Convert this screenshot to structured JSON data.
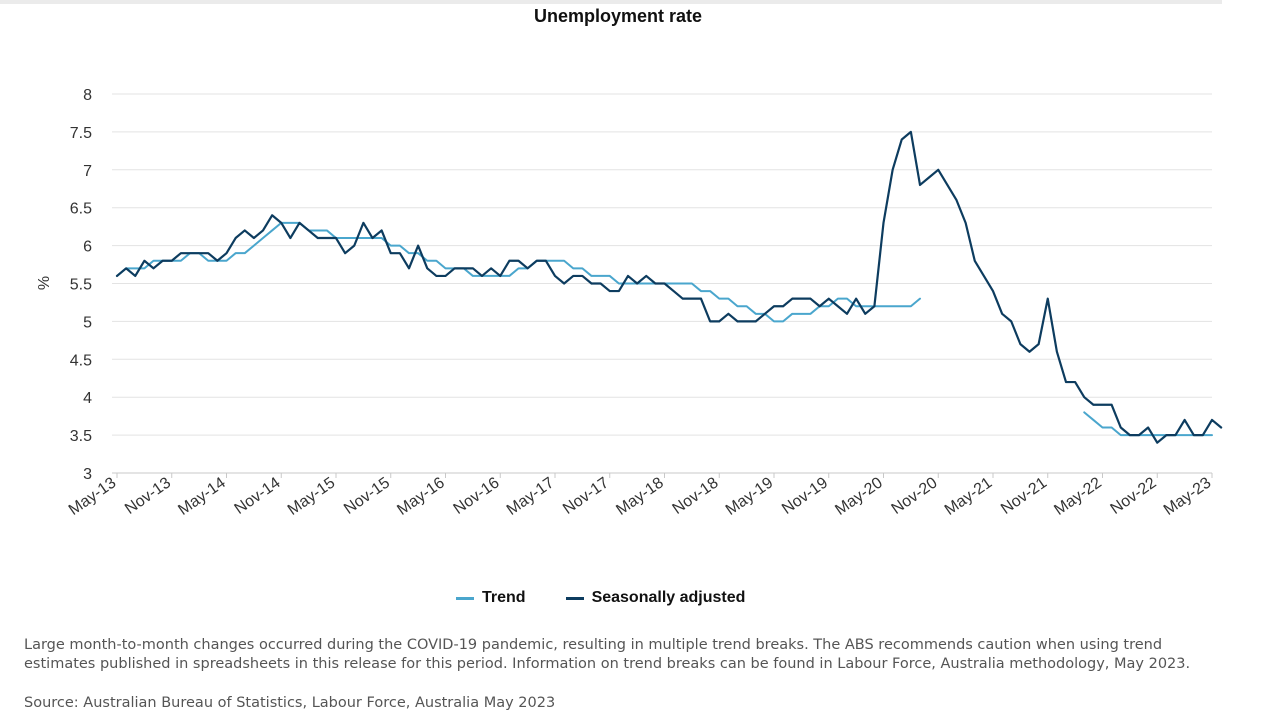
{
  "chart_data": {
    "type": "line",
    "title": "Unemployment rate",
    "ylabel": "%",
    "ylim": [
      3,
      8
    ],
    "yticks": [
      "8",
      "7.5",
      "7",
      "6.5",
      "6",
      "5.5",
      "5",
      "4.5",
      "4",
      "3.5",
      "3"
    ],
    "grid": true,
    "legend_position": "bottom",
    "x_start": "2013-05",
    "x_end": "2023-05",
    "x_labels": [
      "May-13",
      "Nov-13",
      "May-14",
      "Nov-14",
      "May-15",
      "Nov-15",
      "May-16",
      "Nov-16",
      "May-17",
      "Nov-17",
      "May-18",
      "Nov-18",
      "May-19",
      "Nov-19",
      "May-20",
      "Nov-20",
      "May-21",
      "Nov-21",
      "May-22",
      "Nov-22",
      "May-23"
    ],
    "series": [
      {
        "name": "Trend",
        "color": "#4aa6cd",
        "segments": [
          {
            "start": "2013-05",
            "values": [
              5.6,
              5.7,
              5.7,
              5.7,
              5.8,
              5.8,
              5.8,
              5.8,
              5.9,
              5.9,
              5.8,
              5.8,
              5.8,
              5.9,
              5.9,
              6.0,
              6.1,
              6.2,
              6.3,
              6.3,
              6.3,
              6.2,
              6.2,
              6.2,
              6.1,
              6.1,
              6.1,
              6.1,
              6.1,
              6.1,
              6.0,
              6.0,
              5.9,
              5.9,
              5.8,
              5.8,
              5.7,
              5.7,
              5.7,
              5.6,
              5.6,
              5.6,
              5.6,
              5.6,
              5.7,
              5.7,
              5.8,
              5.8,
              5.8,
              5.8,
              5.7,
              5.7,
              5.6,
              5.6,
              5.6,
              5.5,
              5.5,
              5.5,
              5.5,
              5.5,
              5.5,
              5.5,
              5.5,
              5.5,
              5.4,
              5.4,
              5.3,
              5.3,
              5.2,
              5.2,
              5.1,
              5.1,
              5.0,
              5.0,
              5.1,
              5.1,
              5.1,
              5.2,
              5.2,
              5.3,
              5.3,
              5.2,
              5.2,
              5.2,
              5.2,
              5.2,
              5.2,
              5.2,
              5.3
            ]
          },
          {
            "start": "2022-03",
            "values": [
              3.8,
              3.7,
              3.6,
              3.6,
              3.5,
              3.5,
              3.5,
              3.5,
              3.5,
              3.5,
              3.5,
              3.5,
              3.5,
              3.5,
              3.5
            ]
          }
        ]
      },
      {
        "name": "Seasonally adjusted",
        "color": "#0d3c5f",
        "segments": [
          {
            "start": "2013-05",
            "values": [
              5.6,
              5.7,
              5.6,
              5.8,
              5.7,
              5.8,
              5.8,
              5.9,
              5.9,
              5.9,
              5.9,
              5.8,
              5.9,
              6.1,
              6.2,
              6.1,
              6.2,
              6.4,
              6.3,
              6.1,
              6.3,
              6.2,
              6.1,
              6.1,
              6.1,
              5.9,
              6.0,
              6.3,
              6.1,
              6.2,
              5.9,
              5.9,
              5.7,
              6.0,
              5.7,
              5.6,
              5.6,
              5.7,
              5.7,
              5.7,
              5.6,
              5.7,
              5.6,
              5.8,
              5.8,
              5.7,
              5.8,
              5.8,
              5.6,
              5.5,
              5.6,
              5.6,
              5.5,
              5.5,
              5.4,
              5.4,
              5.6,
              5.5,
              5.6,
              5.5,
              5.5,
              5.4,
              5.3,
              5.3,
              5.3,
              5.0,
              5.0,
              5.1,
              5.0,
              5.0,
              5.0,
              5.1,
              5.2,
              5.2,
              5.3,
              5.3,
              5.3,
              5.2,
              5.3,
              5.2,
              5.1,
              5.3,
              5.1,
              5.2,
              6.3,
              7.0,
              7.4,
              7.5,
              6.8,
              6.9,
              7.0,
              6.8,
              6.6,
              6.3,
              5.8,
              5.6,
              5.4,
              5.1,
              5.0,
              4.7,
              4.6,
              4.7,
              5.3,
              4.6,
              4.2,
              4.2,
              4.0,
              3.9,
              3.9,
              3.9,
              3.6,
              3.5,
              3.5,
              3.6,
              3.4,
              3.5,
              3.5,
              3.7,
              3.5,
              3.5,
              3.7,
              3.6
            ]
          }
        ]
      }
    ]
  },
  "legend": {
    "trend_label": "Trend",
    "sa_label": "Seasonally adjusted"
  },
  "footnote": "Large month-to-month changes occurred during the COVID-19 pandemic, resulting in multiple trend breaks. The ABS recommends caution when using trend estimates published in spreadsheets in this release for this period. Information on trend breaks can be found in Labour Force, Australia methodology, May 2023.",
  "source": "Source: Australian Bureau of Statistics, Labour Force, Australia May 2023"
}
